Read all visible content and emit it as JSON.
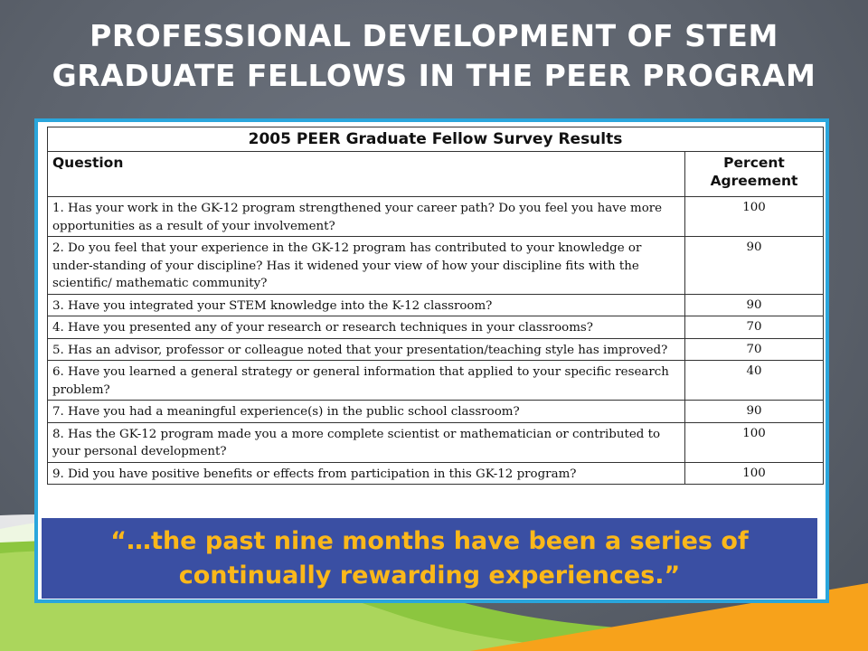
{
  "slide": {
    "title_line1": "PROFESSIONAL DEVELOPMENT OF STEM",
    "title_line2": "GRADUATE FELLOWS IN THE PEER PROGRAM"
  },
  "table": {
    "title": "2005 PEER Graduate Fellow Survey Results",
    "col_question": "Question",
    "col_percent_line1": "Percent",
    "col_percent_line2": "Agreement",
    "rows": [
      {
        "question": "1. Has your work in the GK-12 program strengthened your career path? Do you feel you have more opportunities as a result of your involvement?",
        "percent": "100"
      },
      {
        "question": "2. Do you feel that your experience in the GK-12 program has contributed to your knowledge or under-standing of your discipline?  Has it widened your view of how your discipline fits with the scientific/ mathematic community?",
        "percent": "90"
      },
      {
        "question": "3.  Have you integrated your STEM knowledge into the K-12 classroom?",
        "percent": "90"
      },
      {
        "question": "4.  Have you presented any of your research or research techniques in your classrooms?",
        "percent": "70"
      },
      {
        "question": "5.  Has an advisor, professor or colleague noted that your presentation/teaching style has improved?",
        "percent": "70"
      },
      {
        "question": "6.  Have you learned a general strategy or general information that applied to your specific research problem?",
        "percent": "40"
      },
      {
        "question": "7.  Have you had a meaningful experience(s) in the public school classroom?",
        "percent": "90"
      },
      {
        "question": "8.  Has the GK-12 program made you a more complete scientist or mathematician or contributed to your personal development?",
        "percent": "100"
      },
      {
        "question": "9.  Did you have positive benefits or effects from participation in this GK-12 program?",
        "percent": "100"
      }
    ]
  },
  "quote": {
    "line1": "“…the past nine months have been a series of",
    "line2": "continually rewarding experiences.”"
  },
  "colors": {
    "frame_border": "#2aa6dc",
    "quote_background": "#3a4fa3",
    "quote_text": "#fbb81a",
    "swoosh_green": "#8cc63f",
    "swoosh_orange": "#f7a21b"
  }
}
